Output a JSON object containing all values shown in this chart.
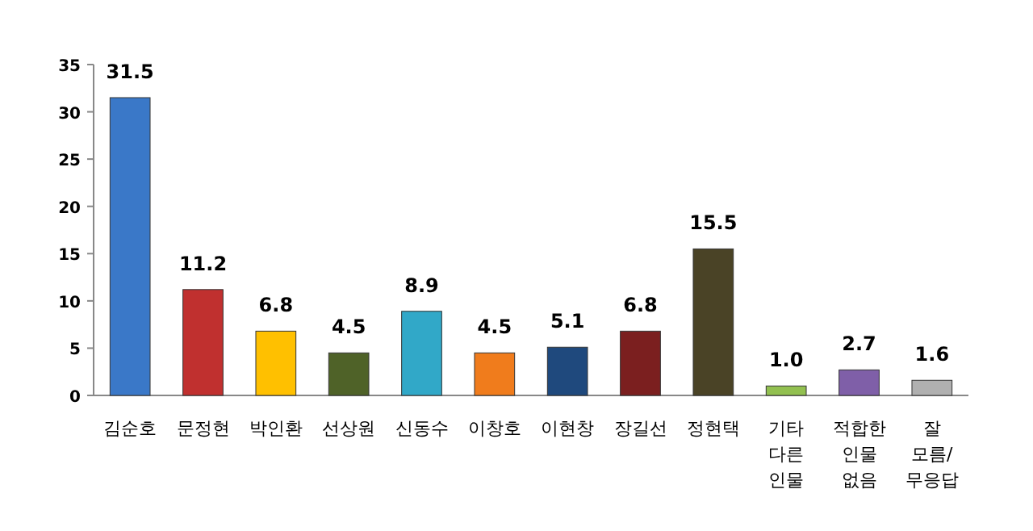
{
  "chart_data": {
    "type": "bar",
    "categories": [
      "김순호",
      "문정현",
      "박인환",
      "선상원",
      "신동수",
      "이창호",
      "이현창",
      "장길선",
      "정현택",
      "기타 다른 인물",
      "적합한 인물 없음",
      "잘 모름/ 무응답"
    ],
    "values": [
      31.5,
      11.2,
      6.8,
      4.5,
      8.9,
      4.5,
      5.1,
      6.8,
      15.5,
      1.0,
      2.7,
      1.6
    ],
    "value_labels": [
      "31.5",
      "11.2",
      "6.8",
      "4.5",
      "8.9",
      "4.5",
      "5.1",
      "6.8",
      "15.5",
      "1.0",
      "2.7",
      "1.6"
    ],
    "colors": [
      "#3a78c8",
      "#c0302f",
      "#ffc000",
      "#4f6228",
      "#31a8c8",
      "#f07c1c",
      "#1f497d",
      "#7b1f1f",
      "#4a4326",
      "#92c050",
      "#7f5fa8",
      "#b0b0b0"
    ],
    "ylim": [
      0,
      35
    ],
    "yticks": [
      0,
      5,
      10,
      15,
      20,
      25,
      30,
      35
    ]
  }
}
